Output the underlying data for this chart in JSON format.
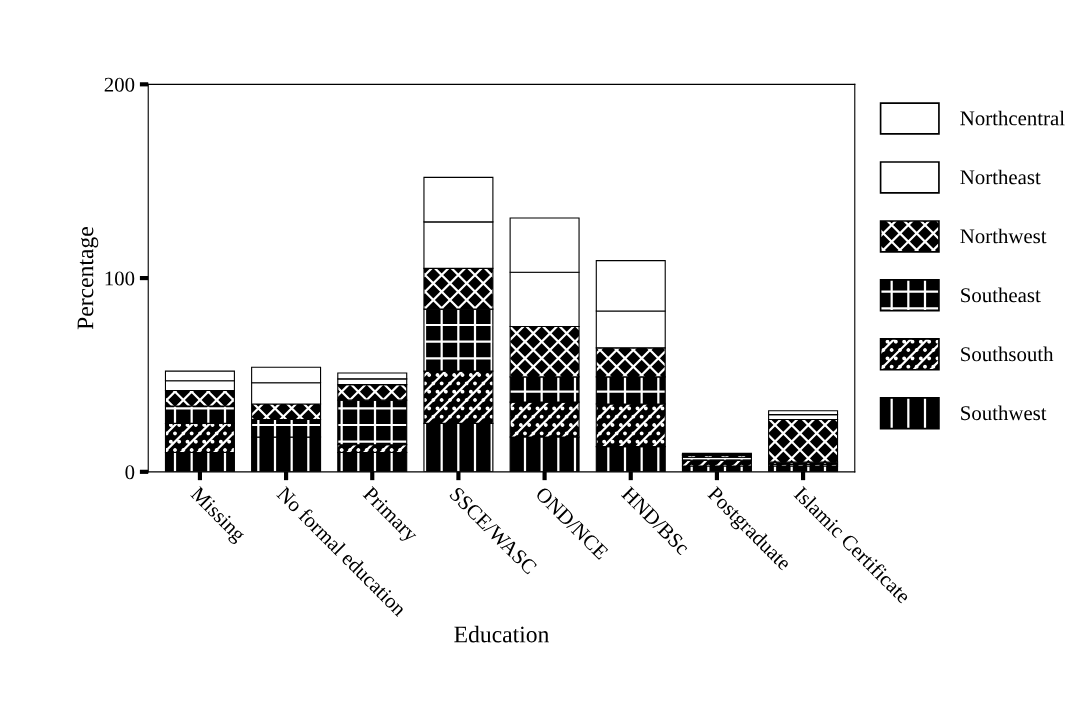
{
  "chart_data": {
    "type": "bar",
    "stacked": true,
    "xlabel": "Education",
    "ylabel": "Percentage",
    "categories": [
      "Missing",
      "No formal education",
      "Primary",
      "SSCE/WASC",
      "OND/NCE",
      "HND/BSc",
      "Postgraduate",
      "Islamic Certificate"
    ],
    "series": [
      {
        "name": "Southwest",
        "color": "#000000",
        "values": [
          10,
          18,
          10,
          25,
          18,
          13,
          3,
          3
        ]
      },
      {
        "name": "Southsouth",
        "color": "#000000",
        "values": [
          15,
          0,
          4,
          27,
          18,
          22,
          3,
          1
        ]
      },
      {
        "name": "Southeast",
        "color": "#000000",
        "values": [
          9,
          9,
          23,
          32,
          13,
          14,
          1.5,
          1
        ]
      },
      {
        "name": "Northwest",
        "color": "#000000",
        "values": [
          8,
          8,
          8,
          21,
          26,
          15,
          1,
          22
        ]
      },
      {
        "name": "Northeast",
        "color": "#ffffff",
        "values": [
          5,
          11,
          3,
          24,
          28,
          19,
          0.5,
          2.5
        ]
      },
      {
        "name": "Northcentral",
        "color": "#ffffff",
        "values": [
          5,
          8,
          3,
          23,
          28,
          26,
          0.5,
          2
        ]
      }
    ],
    "ylim": [
      0,
      200
    ],
    "yticks": [
      0,
      100,
      200
    ],
    "grid": false,
    "legend": "right"
  }
}
